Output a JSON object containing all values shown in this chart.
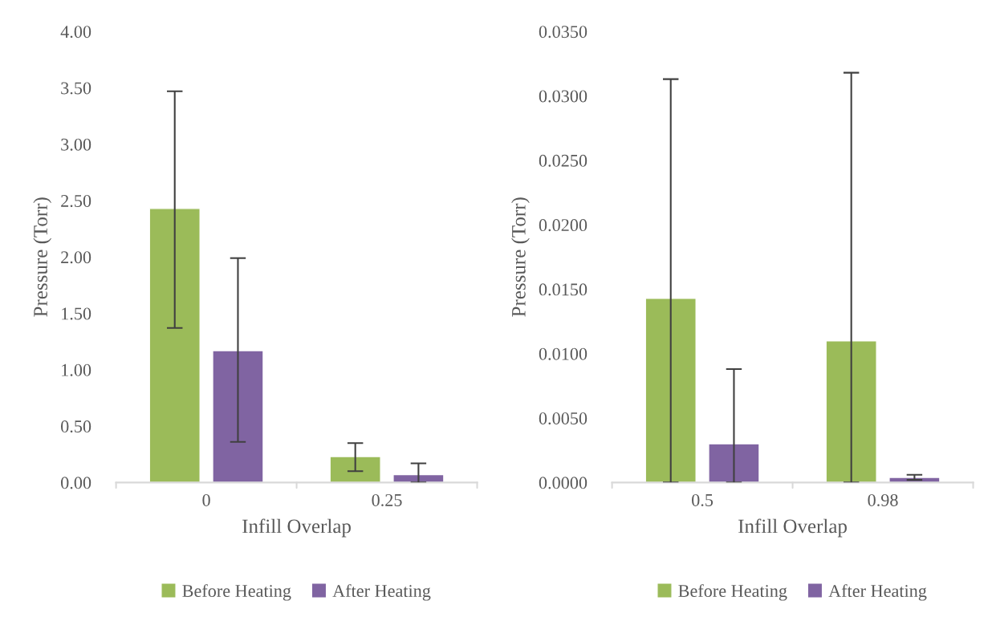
{
  "chart_data": [
    {
      "type": "bar",
      "xlabel": "Infill Overlap",
      "ylabel": "Pressure (Torr)",
      "categories": [
        "0",
        "0.25"
      ],
      "series": [
        {
          "name": "Before Heating",
          "color": "#9bbb59",
          "values": [
            2.43,
            0.23
          ],
          "errors": [
            [
              1.37,
              3.47
            ],
            [
              0.1,
              0.35
            ]
          ]
        },
        {
          "name": "After Heating",
          "color": "#8064a2",
          "values": [
            1.17,
            0.07
          ],
          "errors": [
            [
              0.36,
              1.99
            ],
            [
              0,
              0.17
            ]
          ]
        }
      ],
      "ylim": [
        0,
        4
      ],
      "yticks": [
        {
          "value": 0,
          "label": "0.00"
        },
        {
          "value": 0.5,
          "label": "0.50"
        },
        {
          "value": 1,
          "label": "1.00"
        },
        {
          "value": 1.5,
          "label": "1.50"
        },
        {
          "value": 2,
          "label": "2.00"
        },
        {
          "value": 2.5,
          "label": "2.50"
        },
        {
          "value": 3,
          "label": "3.00"
        },
        {
          "value": 3.5,
          "label": "3.50"
        },
        {
          "value": 4,
          "label": "4.00"
        }
      ],
      "grid": false,
      "legend": "bottom"
    },
    {
      "type": "bar",
      "xlabel": "Infill Overlap",
      "ylabel": "Pressure (Torr)",
      "categories": [
        "0.5",
        "0.98"
      ],
      "series": [
        {
          "name": "Before Heating",
          "color": "#9bbb59",
          "values": [
            0.0143,
            0.011
          ],
          "errors": [
            [
              0,
              0.0313
            ],
            [
              0,
              0.0318
            ]
          ]
        },
        {
          "name": "After Heating",
          "color": "#8064a2",
          "values": [
            0.003,
            0.0004
          ],
          "errors": [
            [
              0,
              0.0088
            ],
            [
              0.0002,
              0.0006
            ]
          ]
        }
      ],
      "ylim": [
        0,
        0.035
      ],
      "yticks": [
        {
          "value": 0,
          "label": "0.0000"
        },
        {
          "value": 0.005,
          "label": "0.0050"
        },
        {
          "value": 0.01,
          "label": "0.0100"
        },
        {
          "value": 0.015,
          "label": "0.0150"
        },
        {
          "value": 0.02,
          "label": "0.0200"
        },
        {
          "value": 0.025,
          "label": "0.0250"
        },
        {
          "value": 0.03,
          "label": "0.0300"
        },
        {
          "value": 0.035,
          "label": "0.0350"
        }
      ],
      "grid": false,
      "legend": "bottom"
    }
  ]
}
